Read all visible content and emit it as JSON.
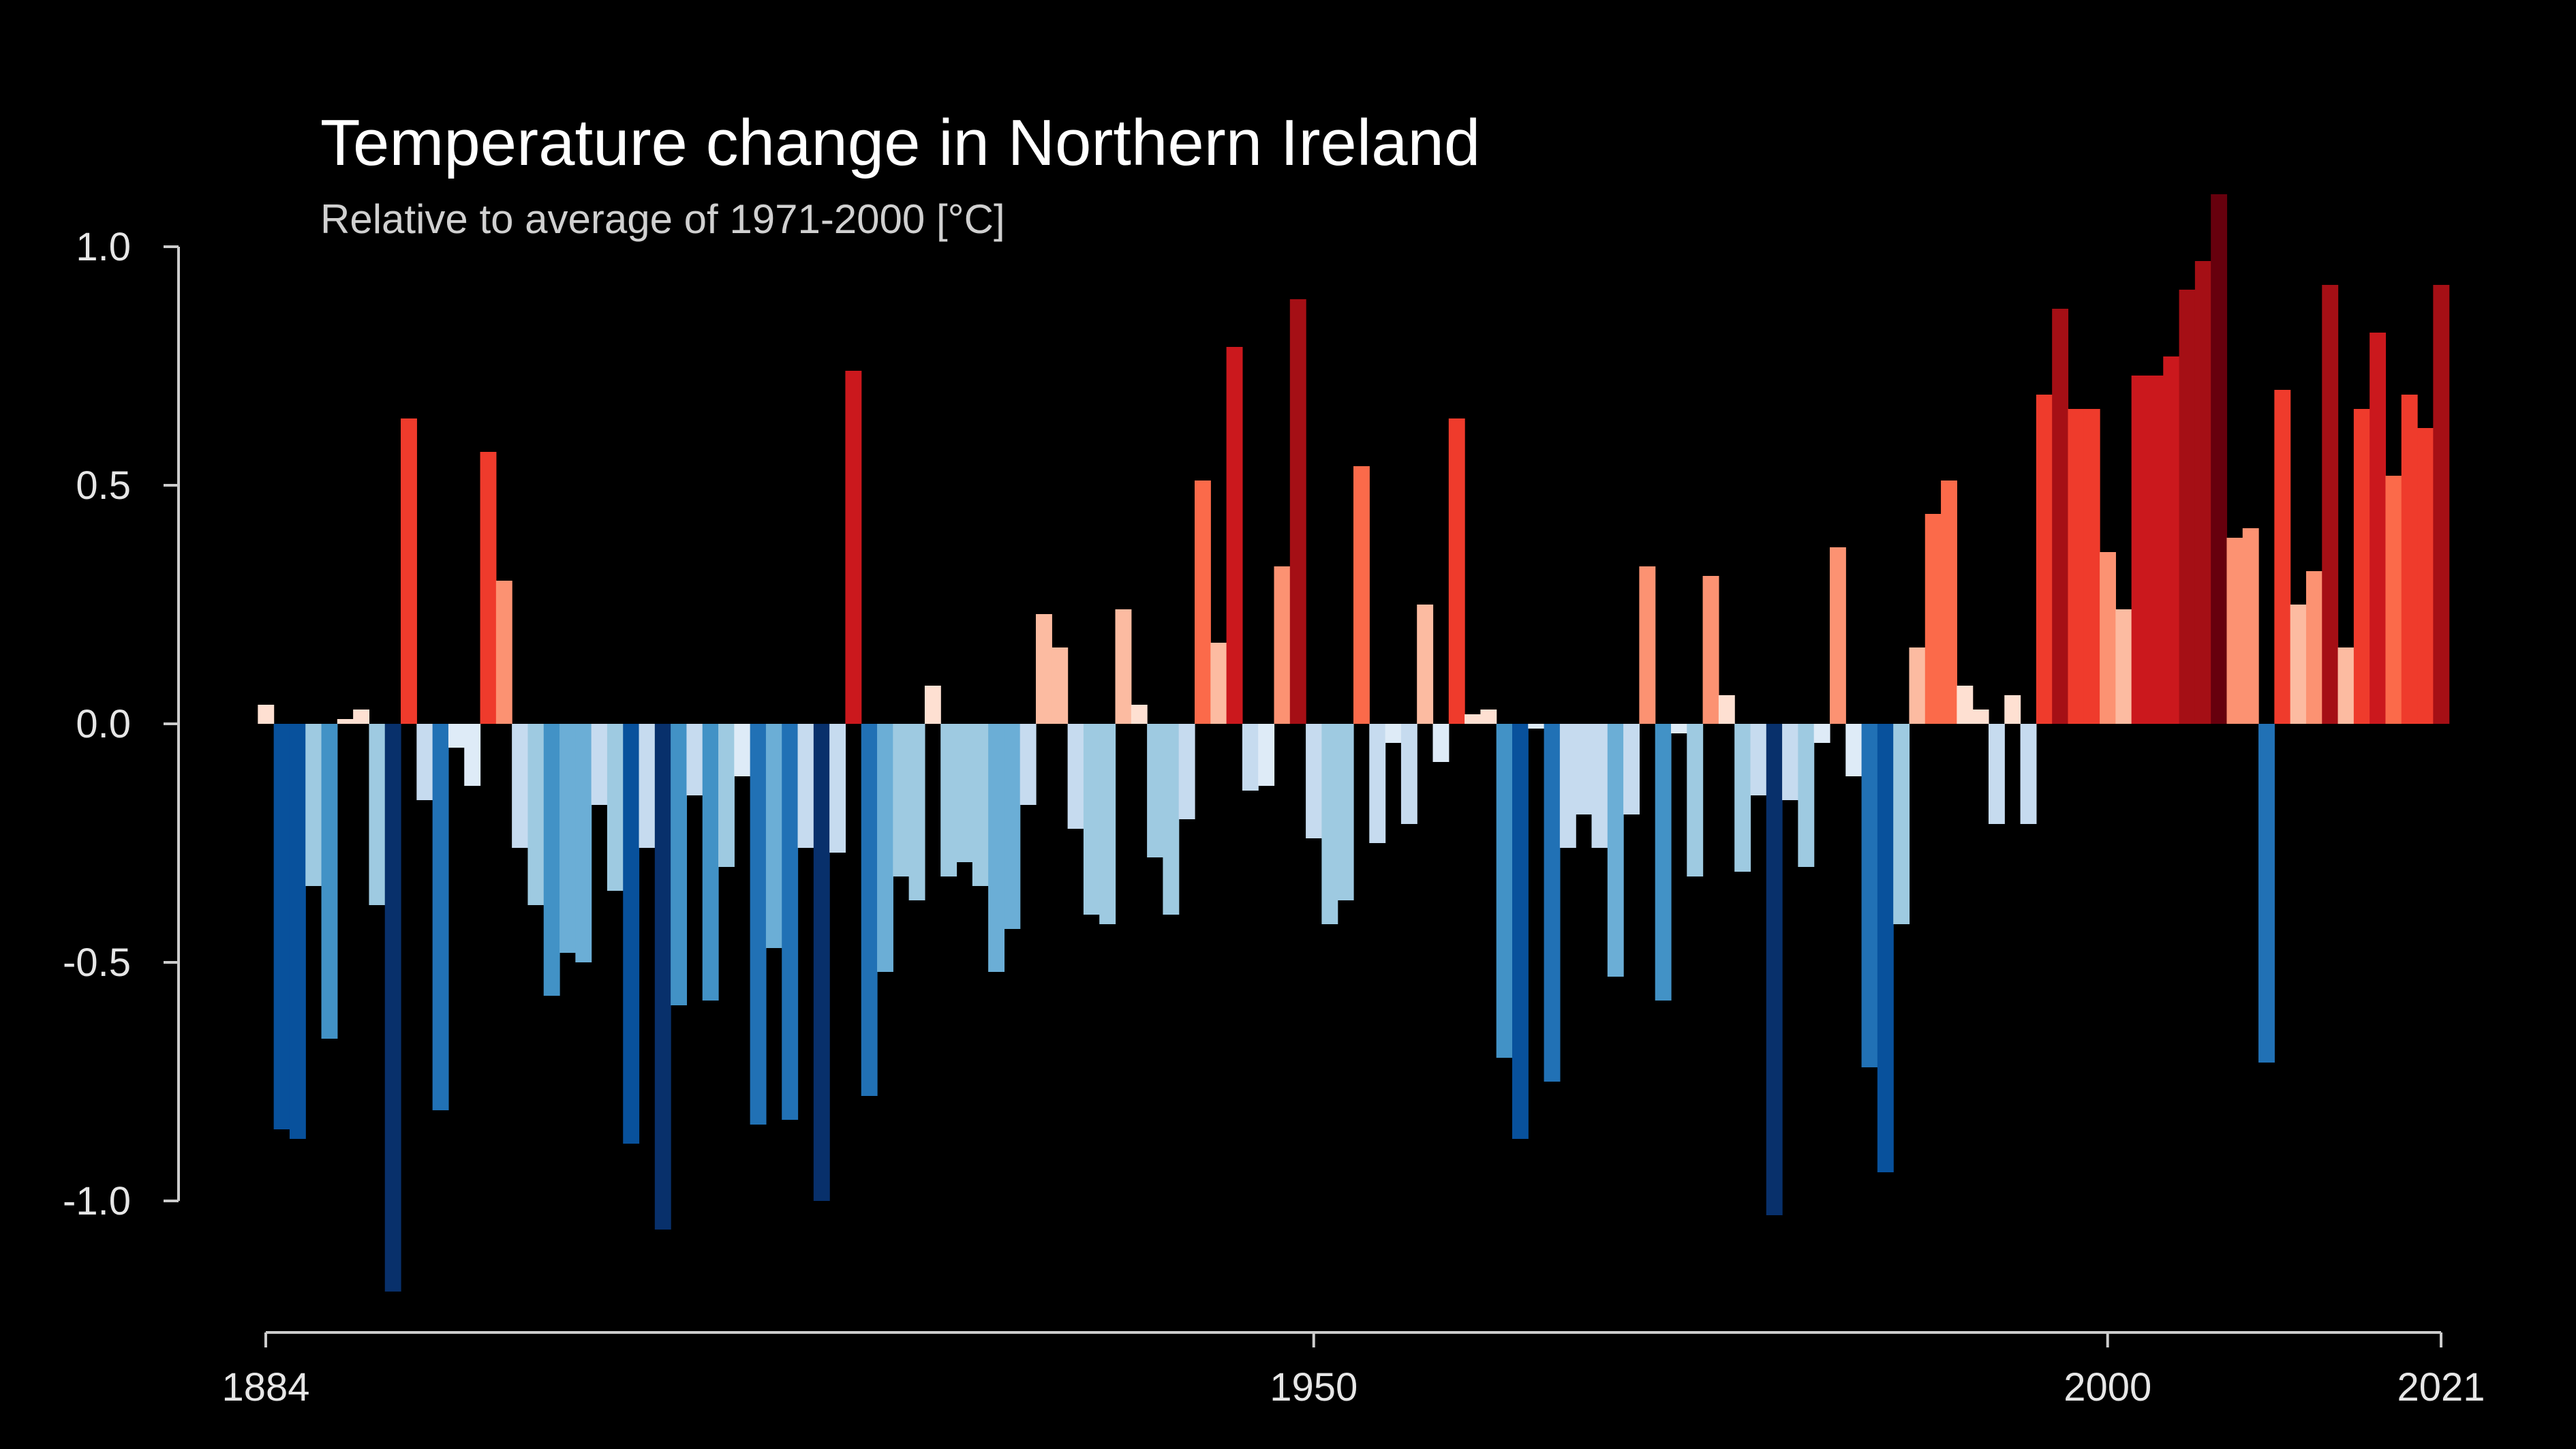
{
  "chart_data": {
    "type": "bar",
    "title": "Temperature change in Northern Ireland",
    "subtitle": "Relative to average of 1971-2000  [°C]",
    "xlabel": "",
    "ylabel": "",
    "x_start": 1884,
    "x_end": 2021,
    "ylim": [
      -1.2,
      1.1
    ],
    "y_ticks": [
      1.0,
      0.5,
      0.0,
      -0.5,
      -1.0
    ],
    "y_tick_labels": [
      "1.0",
      "0.5",
      "0.0",
      "-0.5",
      "-1.0"
    ],
    "x_ticks": [
      1884,
      1950,
      2000,
      2021
    ],
    "x_tick_labels": [
      "1884",
      "1950",
      "2000",
      "2021"
    ],
    "grid": false,
    "legend": "none",
    "colors": {
      "background": "#000000",
      "axis": "#cccccc",
      "warm_scale": [
        "#fee0d2",
        "#fcbba1",
        "#fc9272",
        "#fb6a4a",
        "#ef3b2c",
        "#cb181d",
        "#a50f15",
        "#67000d"
      ],
      "cool_scale": [
        "#deebf7",
        "#c6dbef",
        "#9ecae1",
        "#6baed6",
        "#4292c6",
        "#2171b5",
        "#08519c",
        "#08306b"
      ]
    },
    "series": [
      {
        "x": [
          1884,
          1885,
          1886,
          1887,
          1888,
          1889,
          1890,
          1891,
          1892,
          1893,
          1894,
          1895,
          1896,
          1897,
          1898,
          1899,
          1900,
          1901,
          1902,
          1903,
          1904,
          1905,
          1906,
          1907,
          1908,
          1909,
          1910,
          1911,
          1912,
          1913,
          1914,
          1915,
          1916,
          1917,
          1918,
          1919,
          1920,
          1921,
          1922,
          1923,
          1924,
          1925,
          1926,
          1927,
          1928,
          1929,
          1930,
          1931,
          1932,
          1933,
          1934,
          1935,
          1936,
          1937,
          1938,
          1939,
          1940,
          1941,
          1942,
          1943,
          1944,
          1945,
          1946,
          1947,
          1948,
          1949,
          1950,
          1951,
          1952,
          1953,
          1954,
          1955,
          1956,
          1957,
          1958,
          1959,
          1960,
          1961,
          1962,
          1963,
          1964,
          1965,
          1966,
          1967,
          1968,
          1969,
          1970,
          1971,
          1972,
          1973,
          1974,
          1975,
          1976,
          1977,
          1978,
          1979,
          1980,
          1981,
          1982,
          1983,
          1984,
          1985,
          1986,
          1987,
          1988,
          1989,
          1990,
          1991,
          1992,
          1993,
          1994,
          1995,
          1996,
          1997,
          1998,
          1999,
          2000,
          2001,
          2002,
          2003,
          2004,
          2005,
          2006,
          2007,
          2008,
          2009,
          2010,
          2011,
          2012,
          2013,
          2014,
          2015,
          2016,
          2017,
          2018,
          2019,
          2020,
          2021
        ],
        "values": [
          0.04,
          -0.85,
          -0.87,
          -0.34,
          -0.66,
          0.01,
          0.03,
          -0.38,
          -1.19,
          0.64,
          -0.16,
          -0.81,
          -0.05,
          -0.13,
          0.57,
          0.3,
          -0.26,
          -0.38,
          -0.57,
          -0.48,
          -0.5,
          -0.17,
          -0.35,
          -0.88,
          -0.26,
          -1.06,
          -0.59,
          -0.15,
          -0.58,
          -0.3,
          -0.11,
          -0.84,
          -0.47,
          -0.83,
          -0.26,
          -1.0,
          -0.27,
          0.74,
          -0.78,
          -0.52,
          -0.32,
          -0.37,
          0.08,
          -0.32,
          -0.29,
          -0.34,
          -0.52,
          -0.43,
          -0.17,
          0.23,
          0.16,
          -0.22,
          -0.4,
          -0.42,
          0.24,
          0.04,
          -0.28,
          -0.4,
          -0.2,
          0.51,
          0.17,
          0.79,
          -0.14,
          -0.13,
          0.33,
          0.89,
          -0.24,
          -0.42,
          -0.37,
          0.54,
          -0.25,
          -0.04,
          -0.21,
          0.25,
          -0.08,
          0.64,
          0.02,
          0.03,
          -0.7,
          -0.87,
          -0.01,
          -0.75,
          -0.26,
          -0.19,
          -0.26,
          -0.53,
          -0.19,
          0.33,
          -0.58,
          -0.02,
          -0.32,
          0.31,
          0.06,
          -0.31,
          -0.15,
          -1.03,
          -0.16,
          -0.3,
          -0.04,
          0.37,
          -0.11,
          -0.72,
          -0.94,
          -0.42,
          0.16,
          0.44,
          0.51,
          0.08,
          0.03,
          -0.21,
          0.06,
          -0.21,
          0.69,
          0.87,
          0.66,
          0.66,
          0.36,
          0.24,
          0.73,
          0.73,
          0.77,
          0.91,
          0.97,
          1.11,
          0.39,
          0.41,
          -0.71,
          0.7,
          0.25,
          0.32,
          0.92,
          0.16,
          0.66,
          0.82,
          0.52,
          0.69,
          0.62,
          0.92
        ]
      }
    ]
  }
}
